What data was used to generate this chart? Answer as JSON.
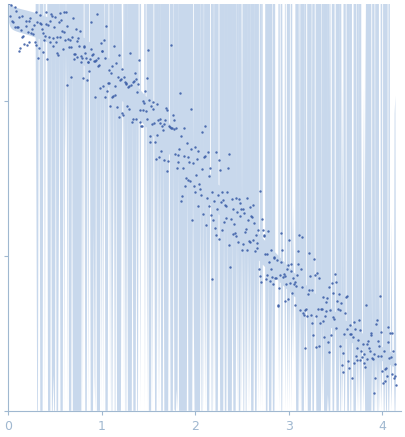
{
  "title": "",
  "xlabel": "",
  "ylabel": "",
  "xlim": [
    0,
    4.2
  ],
  "scatter_color": "#3d5fa8",
  "fill_color": "#c8d8ec",
  "fill_alpha": 1.0,
  "scatter_size": 3,
  "scatter_alpha": 0.9,
  "axis_color": "#a0b8d0",
  "tick_color": "#a0b8d0",
  "background_color": "#ffffff",
  "xticks": [
    0,
    1,
    2,
    3,
    4
  ],
  "n_points": 500,
  "q_max": 4.15,
  "seed": 42
}
